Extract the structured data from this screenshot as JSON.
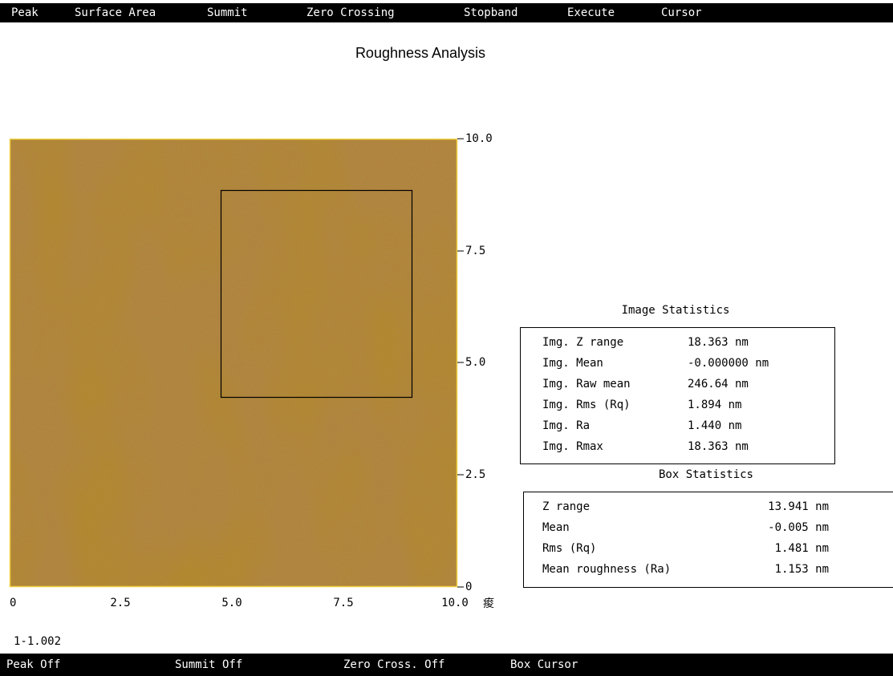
{
  "menu": [
    "Peak",
    "Surface Area",
    "Summit",
    "Zero Crossing",
    "Stopband",
    "Execute",
    "Cursor"
  ],
  "title": "Roughness Analysis",
  "y_axis_ticks": [
    "10.0",
    "7.5",
    "5.0",
    "2.5",
    "0"
  ],
  "x_axis_ticks": [
    "0",
    "2.5",
    "5.0",
    "7.5",
    "10.0"
  ],
  "x_axis_unit": "痠",
  "image_statistics": {
    "title": "Image Statistics",
    "rows": [
      [
        "Img. Z range",
        "18.363 nm"
      ],
      [
        "Img. Mean",
        "-0.000000 nm"
      ],
      [
        "Img. Raw mean",
        "246.64 nm"
      ],
      [
        "Img. Rms (Rq)",
        "1.894 nm"
      ],
      [
        "Img. Ra",
        "1.440 nm"
      ],
      [
        "Img. Rmax",
        "18.363 nm"
      ]
    ]
  },
  "box_statistics": {
    "title": "Box Statistics",
    "rows": [
      [
        "Z range",
        "13.941 nm"
      ],
      [
        "Mean",
        "-0.005 nm"
      ],
      [
        "Rms (Rq)",
        "1.481 nm"
      ],
      [
        "Mean roughness (Ra)",
        "1.153 nm"
      ]
    ]
  },
  "scan_label": "1-1.002",
  "status_bar": [
    "Peak Off",
    "Summit Off",
    "Zero Cross. Off",
    "Box Cursor"
  ]
}
